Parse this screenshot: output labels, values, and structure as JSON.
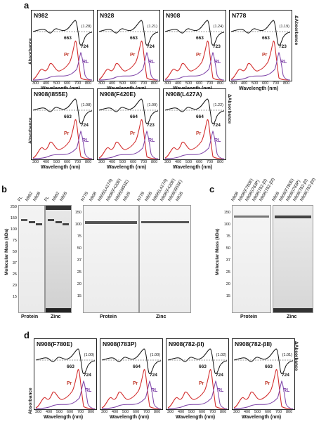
{
  "panels": {
    "a": "a",
    "b": "b",
    "c": "c",
    "d": "d"
  },
  "common": {
    "wavelength_label": "Wavelength (nm)",
    "absorbance_label": "Absorbance",
    "absorbance_delta_label": "ΔAbsorbance",
    "pr_label": "Pr",
    "rl_label": "RL",
    "x_ticks": [
      "300",
      "400",
      "500",
      "600",
      "700",
      "800"
    ]
  },
  "panel_a": [
    {
      "name": "N982",
      "ratio": "(1.28)",
      "peak_top": "663",
      "peak_mid": "724"
    },
    {
      "name": "N928",
      "ratio": "(1.21)",
      "peak_top": "663",
      "peak_mid": "724"
    },
    {
      "name": "N908",
      "ratio": "(1.24)",
      "peak_top": "663",
      "peak_mid": "723"
    },
    {
      "name": "N778",
      "ratio": "(1.19)",
      "peak_top": "663",
      "peak_mid": "723"
    },
    {
      "name": "N908(I855E)",
      "ratio": "(1.08)",
      "peak_top": "663",
      "peak_mid": "724"
    },
    {
      "name": "N908(F420E)",
      "ratio": "(1.09)",
      "peak_top": "664",
      "peak_mid": "723"
    },
    {
      "name": "N908(L427A)",
      "ratio": "(1.22)",
      "peak_top": "664",
      "peak_mid": "724"
    }
  ],
  "panel_b": {
    "molecular_mass_label": "Molecular Mass (kDa)",
    "mw_ticks": [
      "250",
      "150",
      "100",
      "75",
      "50",
      "37",
      "25",
      "20",
      "15"
    ],
    "gel1_lanes": [
      "FL",
      "N982",
      "N908"
    ],
    "gel2_lanes": [
      "FL",
      "N982",
      "N908"
    ],
    "gel3_lanes": [
      "N778",
      "N908",
      "N908(L427A)",
      "N908(F420E)",
      "N908(I855E)",
      "N928"
    ],
    "gel4_lanes": [
      "N778",
      "N908",
      "N908(L427A)",
      "N908(F420E)",
      "N908(I855E)",
      "N928"
    ],
    "gel3_ticks": [
      "150",
      "100",
      "75",
      "50",
      "37",
      "25",
      "20",
      "15"
    ],
    "protein_label": "Protein",
    "zinc_label": "Zinc"
  },
  "panel_c": {
    "molecular_mass_label": "Molecular Mass (kDa)",
    "mw_ticks": [
      "150",
      "100",
      "75",
      "50",
      "37",
      "25",
      "20",
      "15"
    ],
    "lanes": [
      "N908",
      "N908(F780E)",
      "N908(I783P)",
      "N908(782-βI)",
      "N908(782-βII)"
    ],
    "protein_label": "Protein",
    "zinc_label": "Zinc"
  },
  "panel_d": [
    {
      "name": "N908(F780E)",
      "ratio": "(1.00)",
      "peak_top": "663",
      "peak_mid": "724"
    },
    {
      "name": "N908(I783P)",
      "ratio": "(1.00)",
      "peak_top": "664",
      "peak_mid": "724"
    },
    {
      "name": "N908(782-βI)",
      "ratio": "(1.02)",
      "peak_top": "663",
      "peak_mid": "724"
    },
    {
      "name": "N908(782-βII)",
      "ratio": "(1.01)",
      "peak_top": "663",
      "peak_mid": "724"
    }
  ]
}
